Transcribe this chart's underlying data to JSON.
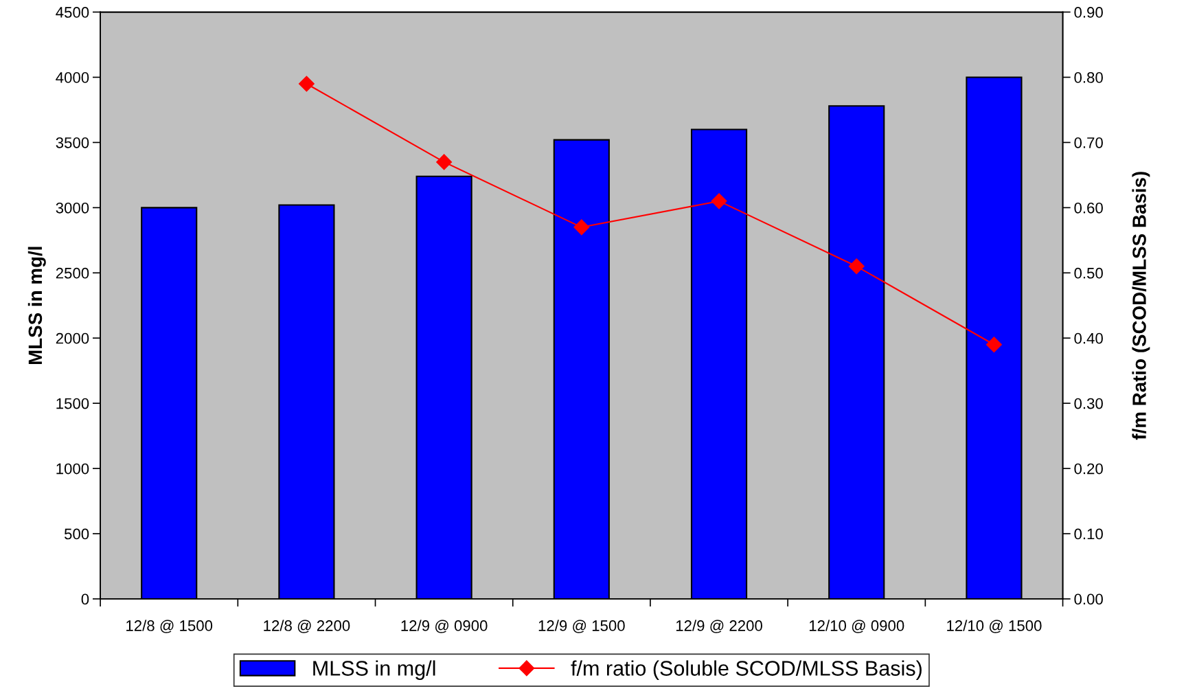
{
  "chart_data": {
    "type": "bar",
    "categories": [
      "12/8 @ 1500",
      "12/8 @ 2200",
      "12/9 @ 0900",
      "12/9 @ 1500",
      "12/9 @ 2200",
      "12/10 @ 0900",
      "12/10 @ 1500"
    ],
    "series": [
      {
        "name": "MLSS in mg/l",
        "color": "#0000ff",
        "values": [
          3000,
          3020,
          3240,
          3520,
          3600,
          3780,
          4000
        ]
      },
      {
        "name": "f/m ratio (Soluble SCOD/MLSS Basis)",
        "type": "line",
        "axis": "y2",
        "color": "#ff0000",
        "values": [
          null,
          0.79,
          0.67,
          0.57,
          0.61,
          0.51,
          0.39
        ]
      }
    ],
    "ylabel": "MLSS in mg/l",
    "y2label": "f/m Ratio (SCOD/MLSS Basis)",
    "ylim": [
      0,
      4500
    ],
    "yticks": [
      0,
      500,
      1000,
      1500,
      2000,
      2500,
      3000,
      3500,
      4000,
      4500
    ],
    "y2lim": [
      0,
      0.9
    ],
    "y2ticks": [
      {
        "value": 0,
        "label": "0.00"
      },
      {
        "value": 0.1,
        "label": "0.10"
      },
      {
        "value": 0.2,
        "label": "0.20"
      },
      {
        "value": 0.3,
        "label": "0.30"
      },
      {
        "value": 0.4,
        "label": "0.40"
      },
      {
        "value": 0.5,
        "label": "0.50"
      },
      {
        "value": 0.6,
        "label": "0.60"
      },
      {
        "value": 0.7,
        "label": "0.70"
      },
      {
        "value": 0.8,
        "label": "0.80"
      },
      {
        "value": 0.9,
        "label": "0.90"
      }
    ],
    "marker": "diamond",
    "line_style": "solid",
    "grid": false,
    "legend": "bottom"
  }
}
